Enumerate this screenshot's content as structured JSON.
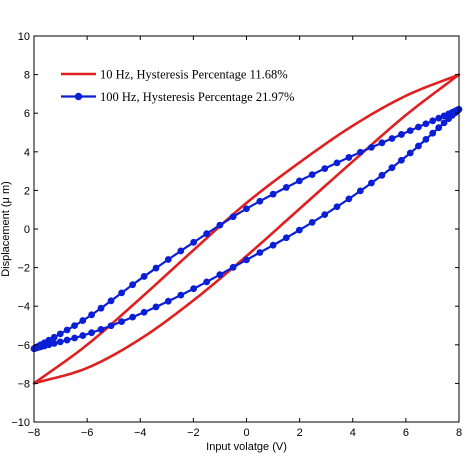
{
  "chart_data": {
    "type": "line",
    "xlabel": "Input volatge (V)",
    "ylabel": "Displacement (μ m)",
    "xlim": [
      -8,
      8
    ],
    "ylim": [
      -10,
      10
    ],
    "xticks": [
      -8,
      -6,
      -4,
      -2,
      0,
      2,
      4,
      6,
      8
    ],
    "yticks": [
      -10,
      -8,
      -6,
      -4,
      -2,
      0,
      2,
      4,
      6,
      8,
      10
    ],
    "grid": false,
    "legend_position": "top-left",
    "series": [
      {
        "name": "10 Hz,  Hysteresis Percentage 11.68%",
        "color": "#e02020",
        "marker": "none",
        "ascending": {
          "x": [
            -8,
            -6,
            -4,
            -2,
            0,
            2,
            4,
            6,
            8
          ],
          "y": [
            -8,
            -7.2,
            -5.7,
            -3.7,
            -1.4,
            1.05,
            3.5,
            5.9,
            8
          ]
        },
        "descending": {
          "x": [
            8,
            6,
            4,
            2,
            0,
            -2,
            -4,
            -6,
            -8
          ],
          "y": [
            8,
            6.9,
            5.35,
            3.45,
            1.35,
            -1.1,
            -3.6,
            -6.0,
            -8
          ]
        }
      },
      {
        "name": "100 Hz,  Hysteresis Percentage 21.97%",
        "color": "#0a1fd6",
        "marker": "circle",
        "ascending": {
          "x": [
            -8,
            -6,
            -4,
            -2,
            0,
            2,
            4,
            6,
            8
          ],
          "y": [
            -6.2,
            -5.45,
            -4.4,
            -3.1,
            -1.6,
            -0.05,
            1.7,
            3.75,
            6.2
          ]
        },
        "descending": {
          "x": [
            8,
            6,
            4,
            2,
            0,
            -2,
            -4,
            -6,
            -8
          ],
          "y": [
            6.2,
            5.0,
            3.8,
            2.5,
            1.05,
            -0.7,
            -2.6,
            -4.6,
            -6.2
          ]
        }
      }
    ]
  }
}
